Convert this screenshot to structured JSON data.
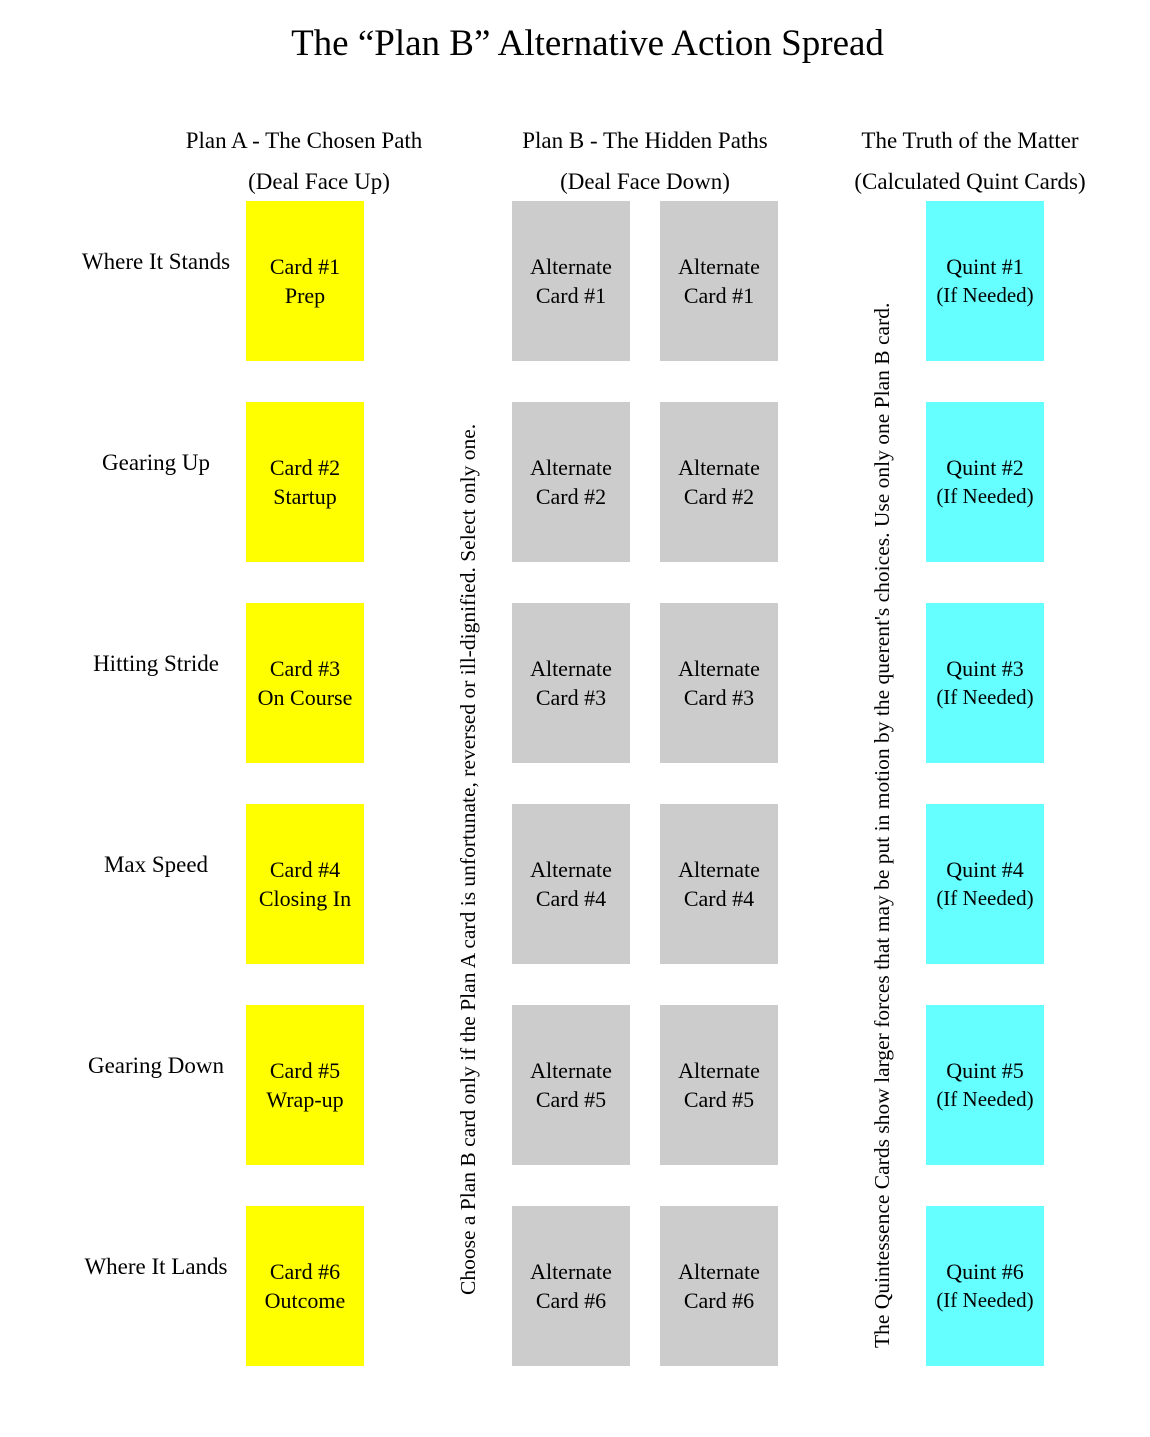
{
  "title": "The “Plan B” Alternative Action Spread",
  "columns": {
    "plan_a": {
      "heading": "Plan A - The Chosen Path",
      "subheading": "(Deal Face Up)"
    },
    "plan_b": {
      "heading": "Plan B - The Hidden Paths",
      "subheading": "(Deal Face Down)"
    },
    "quint": {
      "heading": "The Truth of the Matter",
      "subheading": "(Calculated Quint Cards)"
    }
  },
  "rows": [
    {
      "label": "Where It Stands",
      "plan_a": [
        "Card #1",
        "Prep"
      ],
      "plan_b": [
        "Alternate",
        "Card #1"
      ],
      "quint": [
        "Quint #1",
        "(If Needed)"
      ]
    },
    {
      "label": "Gearing Up",
      "plan_a": [
        "Card #2",
        "Startup"
      ],
      "plan_b": [
        "Alternate",
        "Card #2"
      ],
      "quint": [
        "Quint #2",
        "(If Needed)"
      ]
    },
    {
      "label": "Hitting Stride",
      "plan_a": [
        "Card #3",
        "On Course"
      ],
      "plan_b": [
        "Alternate",
        "Card #3"
      ],
      "quint": [
        "Quint #3",
        "(If Needed)"
      ]
    },
    {
      "label": "Max Speed",
      "plan_a": [
        "Card #4",
        "Closing In"
      ],
      "plan_b": [
        "Alternate",
        "Card #4"
      ],
      "quint": [
        "Quint #4",
        "(If Needed)"
      ]
    },
    {
      "label": "Gearing Down",
      "plan_a": [
        "Card #5",
        "Wrap-up"
      ],
      "plan_b": [
        "Alternate",
        "Card #5"
      ],
      "quint": [
        "Quint #5",
        "(If Needed)"
      ]
    },
    {
      "label": "Where It Lands",
      "plan_a": [
        "Card #6",
        "Outcome"
      ],
      "plan_b": [
        "Alternate",
        "Card #6"
      ],
      "quint": [
        "Quint #6",
        "(If Needed)"
      ]
    }
  ],
  "notes": {
    "plan_b_note": "Choose a Plan B card only if the Plan A card is unfortunate, reversed or ill-dignified. Select only one.",
    "quint_note": "The Quintessence Cards show larger forces that may be put in motion by the querent's choices. Use only one Plan B card."
  },
  "colors": {
    "plan_a": "#ffff00",
    "plan_b": "#cccccc",
    "quint": "#66ffff"
  }
}
